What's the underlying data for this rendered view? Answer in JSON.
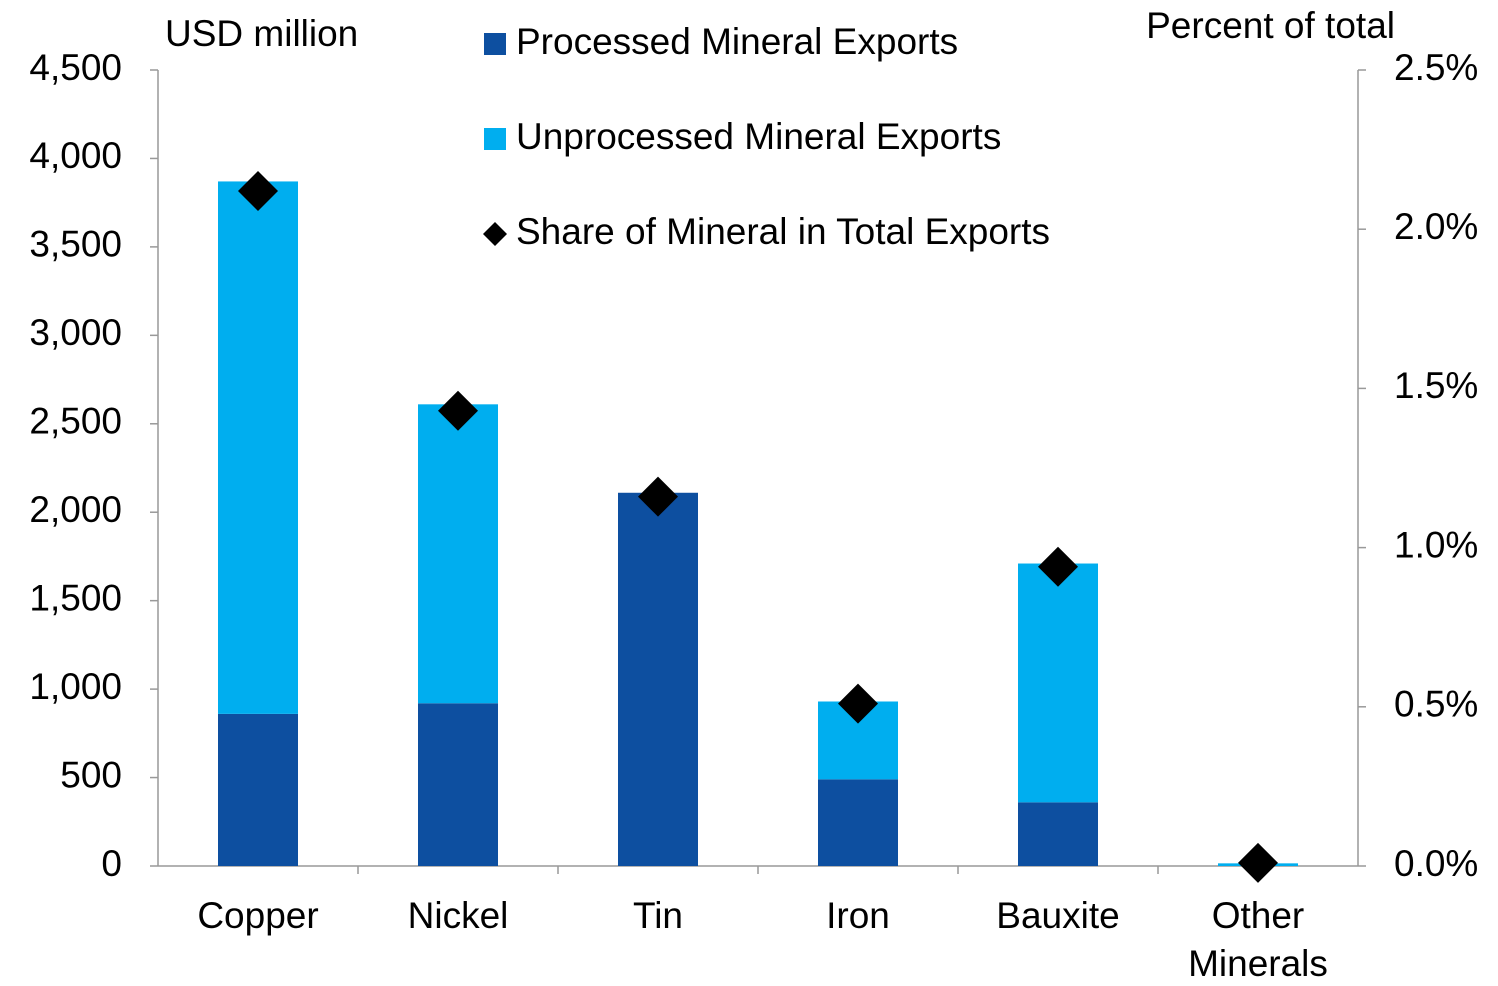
{
  "chart_data": {
    "type": "bar",
    "y_label": "USD million",
    "y2_label": "Percent of total",
    "categories": [
      "Copper",
      "Nickel",
      "Tin",
      "Iron",
      "Bauxite",
      "Other Minerals"
    ],
    "series": [
      {
        "name": "Processed Mineral Exports",
        "color": "#0d4fa0",
        "type": "bar",
        "values": [
          860,
          920,
          2110,
          490,
          360,
          0
        ]
      },
      {
        "name": "Unprocessed Mineral Exports",
        "color": "#00aeef",
        "type": "bar",
        "values": [
          3010,
          1690,
          0,
          440,
          1350,
          15
        ]
      },
      {
        "name": "Share of Mineral in Total Exports",
        "color": "#000000",
        "type": "scatter",
        "axis": "y2",
        "values": [
          2.12,
          1.43,
          1.16,
          0.51,
          0.94,
          0.01
        ]
      }
    ],
    "stacked": true,
    "ylim": [
      0,
      4500
    ],
    "yticks": [
      0,
      500,
      {
        "value": 1000,
        "label": "1,000"
      },
      {
        "value": 1500,
        "label": "1,500"
      },
      {
        "value": 2000,
        "label": "2,000"
      },
      {
        "value": 2500,
        "label": "2,500"
      },
      {
        "value": 3000,
        "label": "3,000"
      },
      {
        "value": 3500,
        "label": "3,500"
      },
      {
        "value": 4000,
        "label": "4,000"
      },
      {
        "value": 4500,
        "label": "4,500"
      }
    ],
    "y2lim": [
      0,
      2.5
    ],
    "y2ticks": [
      {
        "value": 0,
        "label": "0.0%"
      },
      {
        "value": 0.5,
        "label": "0.5%"
      },
      {
        "value": 1,
        "label": "1.0%"
      },
      {
        "value": 1.5,
        "label": "1.5%"
      },
      {
        "value": 2,
        "label": "2.0%"
      },
      {
        "value": 2.5,
        "label": "2.5%"
      }
    ],
    "grid": false,
    "legend": "top"
  }
}
